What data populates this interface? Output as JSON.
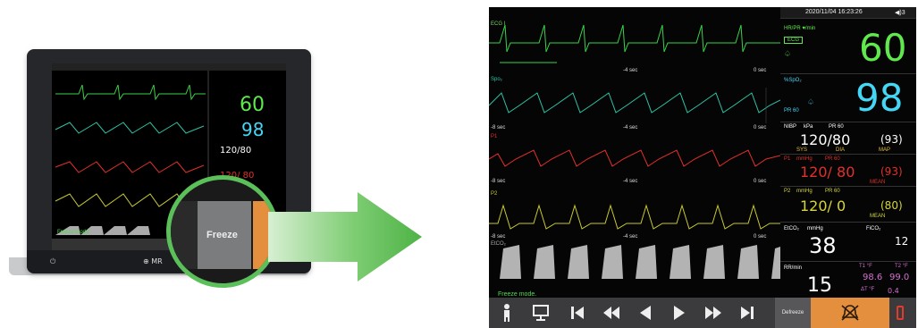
{
  "device": {
    "brand_label": "MR",
    "mini_freeze_label": "Freeze",
    "mini_values": {
      "hr": "60",
      "spo2": "98",
      "nibp": "120/80",
      "p1": "120/ 80"
    },
    "mini_freeze_mode": "Freeze mode."
  },
  "monitor": {
    "header": {
      "datetime": "2020/11/04 16:23:26",
      "volume": "◀)3"
    },
    "waves": [
      {
        "name": "ECG",
        "label": "ECG I",
        "color": "#39d24a"
      },
      {
        "name": "SpO2",
        "label": "Spo₂",
        "color": "#2ec3a6"
      },
      {
        "name": "P1",
        "label": "P1",
        "color": "#e2302a"
      },
      {
        "name": "P2",
        "label": "P2",
        "color": "#c8c831"
      },
      {
        "name": "EtCO2",
        "label": "EtCO₂",
        "color": "#aaaaaa"
      }
    ],
    "sec_labels": [
      "-4 sec",
      "0 sec",
      "-8 sec"
    ],
    "freeze_mode_text": "Freeze mode.",
    "params": {
      "hr": {
        "label": "HR/PR ♥/min",
        "value": "60",
        "sub": "ECG",
        "color": "#5fe94d"
      },
      "spo2": {
        "label": "%SpO₂",
        "value": "98",
        "sub": "PR 60",
        "color": "#45d6f5"
      },
      "nibp": {
        "label": "NIBP",
        "unit": "kPa",
        "pr": "PR 60",
        "value": "120/80",
        "map": "(93)",
        "sys": "SYS",
        "dia": "DIA",
        "map_label": "MAP",
        "color": "#ffffff"
      },
      "p1": {
        "label": "P1",
        "unit": "mmHg",
        "pr": "PR 60",
        "value": "120/ 80",
        "mean": "(93)",
        "mean_label": "MEAN",
        "color": "#e2302a"
      },
      "p2": {
        "label": "P2",
        "unit": "mmHg",
        "pr": "PR 60",
        "value": "120/ 0",
        "mean": "(80)",
        "mean_label": "MEAN",
        "color": "#d6d638"
      },
      "etco2": {
        "label": "EtCO₂",
        "unit": "mmHg",
        "value": "38",
        "fi_label": "FiCO₂",
        "fi_value": "12",
        "color": "#ffffff"
      },
      "rr": {
        "label": "RR/min",
        "value": "15",
        "color": "#ffffff"
      },
      "temp": {
        "t1_label": "T1 °F",
        "t1": "98.6",
        "t2_label": "T2 °F",
        "t2": "99.0",
        "dt_label": "ΔT °F",
        "dt": "0.4",
        "color": "#d36fd0"
      }
    },
    "toolbar": {
      "defreeze_label": "Defreeze",
      "icons": [
        "patient-icon",
        "screen-icon",
        "skip-back-icon",
        "fast-back-icon",
        "step-back-icon",
        "play-icon",
        "fast-forward-icon",
        "skip-forward-icon",
        "alarm-off-icon",
        "battery-icon"
      ]
    }
  }
}
